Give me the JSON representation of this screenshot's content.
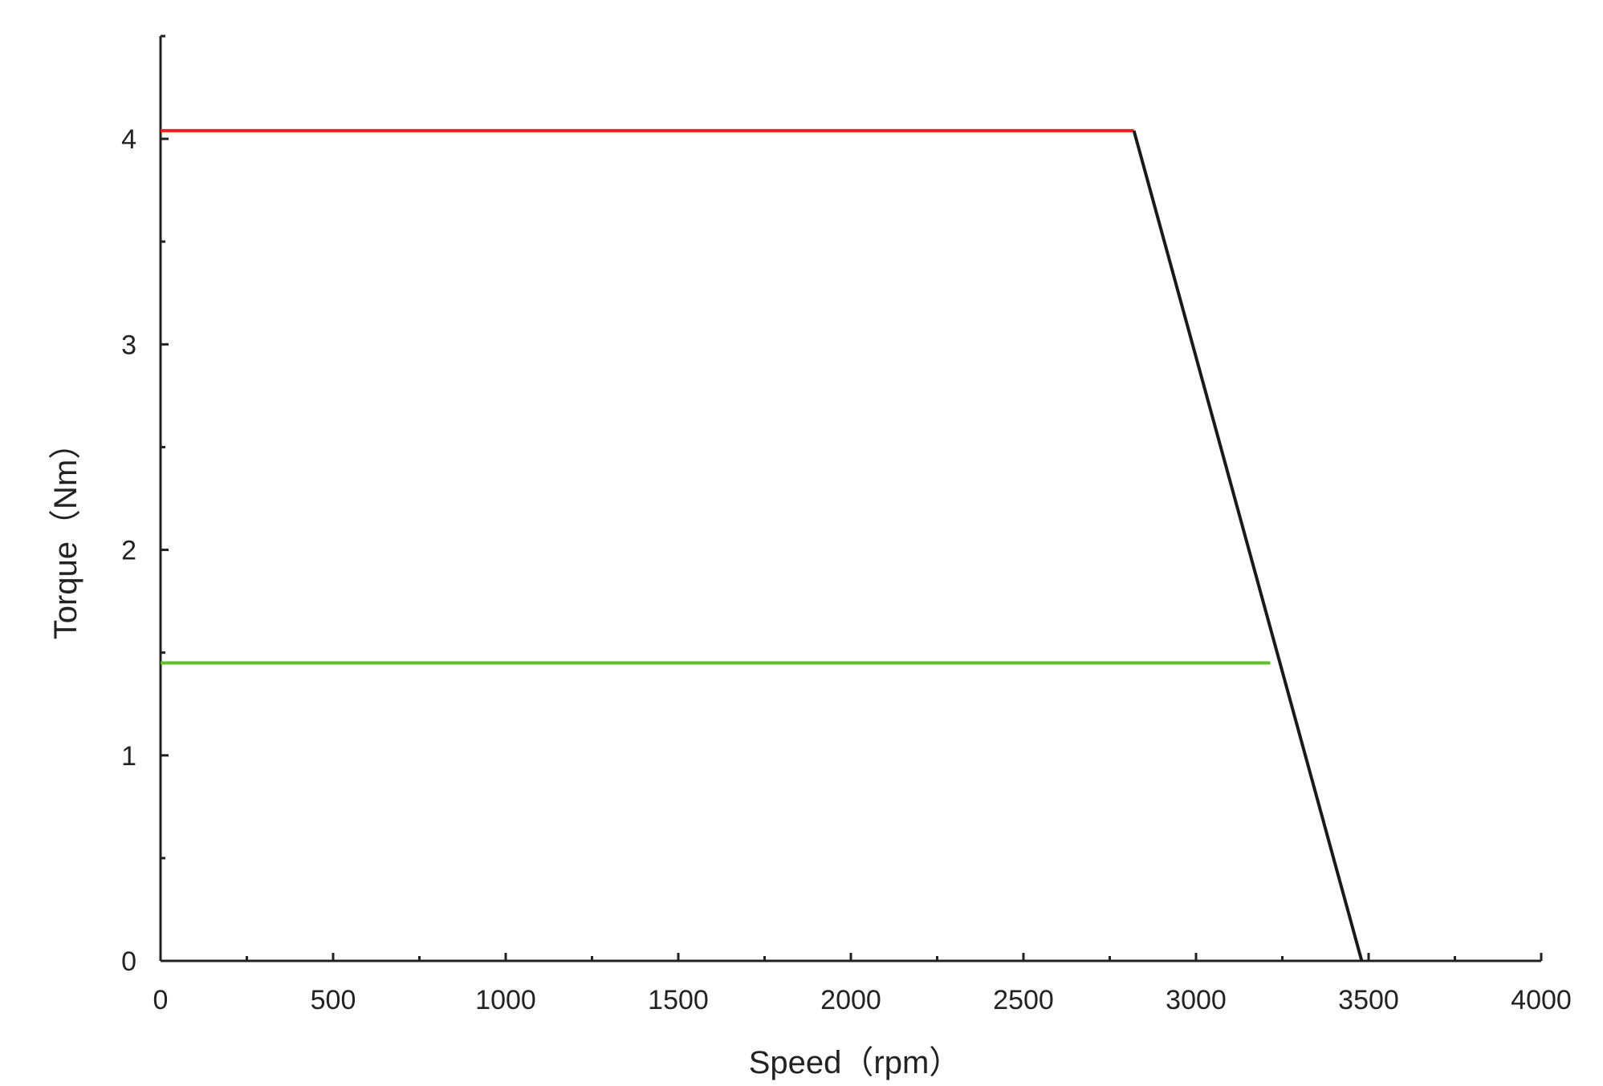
{
  "chart_data": {
    "type": "line",
    "xlabel": "Speed（rpm）",
    "ylabel": "Torque（Nm）",
    "xlim": [
      0,
      4000
    ],
    "ylim": [
      0,
      4.5
    ],
    "x_ticks": [
      0,
      500,
      1000,
      1500,
      2000,
      2500,
      3000,
      3500,
      4000
    ],
    "y_ticks": [
      0,
      1,
      2,
      3,
      4
    ],
    "grid": false,
    "legend": "none",
    "series": [
      {
        "color": "#ff1a1a",
        "points": [
          [
            0,
            4.04
          ],
          [
            2820,
            4.04
          ]
        ]
      },
      {
        "color": "#1a1a1a",
        "points": [
          [
            2820,
            4.04
          ],
          [
            3480,
            0
          ]
        ]
      },
      {
        "color": "#5cbf2a",
        "points": [
          [
            0,
            1.45
          ],
          [
            3215,
            1.45
          ]
        ]
      }
    ]
  }
}
